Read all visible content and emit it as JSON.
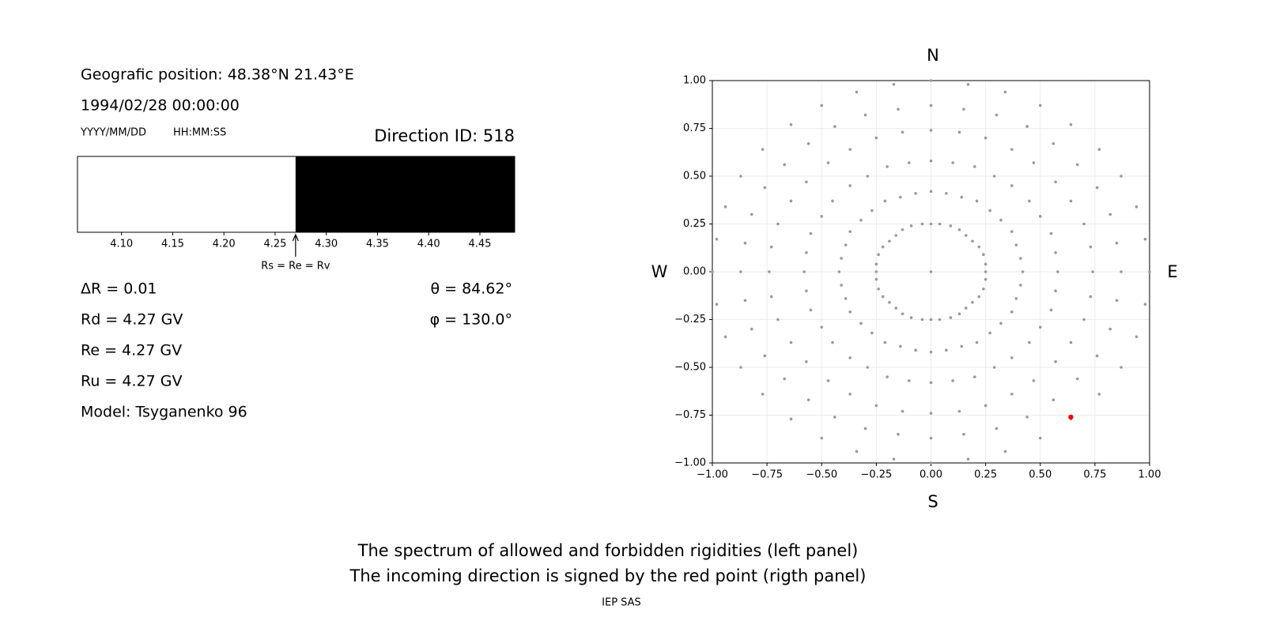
{
  "info": {
    "position": "Geografic position: 48.38°N 21.43°E",
    "datetime": "1994/02/28 00:00:00",
    "date_format": "YYYY/MM/DD",
    "time_format": "HH:MM:SS",
    "direction_id": "Direction ID: 518",
    "delta_r": "ΔR = 0.01",
    "rd": "Rd = 4.27 GV",
    "re": "Re = 4.27 GV",
    "ru": "Ru = 4.27 GV",
    "model": "Model: Tsyganenko 96",
    "theta": "θ = 84.62°",
    "phi": "φ = 130.0°"
  },
  "chart_data": [
    {
      "type": "spectrum",
      "bins": [
        4.057,
        4.27,
        4.484
      ],
      "colors": [
        "#ffffff",
        "#000000"
      ],
      "xlim": [
        4.057,
        4.484
      ],
      "xticks": [
        {
          "value": 4.1,
          "label": "4.10"
        },
        4.15,
        {
          "value": 4.2,
          "label": "4.20"
        },
        4.25,
        {
          "value": 4.3,
          "label": "4.30"
        },
        4.35,
        {
          "value": 4.4,
          "label": "4.40"
        },
        4.45
      ],
      "annotation": {
        "text": "Rs = Re = Rv",
        "x": 4.27
      }
    },
    {
      "type": "scatter",
      "direction_labels": [
        "N",
        "S",
        "W",
        "E"
      ],
      "xlim": [
        -1,
        1
      ],
      "ylim": [
        -1,
        1
      ],
      "xticks": [
        {
          "value": -1,
          "label": "−1.00"
        },
        {
          "value": -0.75,
          "label": "−0.75"
        },
        {
          "value": -0.5,
          "label": "−0.50"
        },
        {
          "value": -0.25,
          "label": "−0.25"
        },
        {
          "value": 0,
          "label": "0.00"
        },
        {
          "value": 0.25,
          "label": "0.25"
        },
        {
          "value": 0.5,
          "label": "0.50"
        },
        {
          "value": 0.75,
          "label": "0.75"
        },
        {
          "value": 1,
          "label": "1.00"
        }
      ],
      "yticks": [
        {
          "value": -1,
          "label": "−1.00"
        },
        {
          "value": -0.75,
          "label": "−0.75"
        },
        {
          "value": -0.5,
          "label": "−0.50"
        },
        {
          "value": -0.25,
          "label": "−0.25"
        },
        {
          "value": 0,
          "label": "0.00"
        },
        {
          "value": 0.25,
          "label": "0.25"
        },
        {
          "value": 0.5,
          "label": "0.50"
        },
        {
          "value": 0.75,
          "label": "0.75"
        },
        {
          "value": 1,
          "label": "1.00"
        }
      ],
      "grid": true,
      "series": [
        {
          "color": "#999999",
          "x": [
            0,
            0.04,
            0.09,
            0.13,
            0.16,
            0.19,
            0.22,
            0.24,
            0.25,
            0.25,
            0.25,
            0.24,
            0.22,
            0.19,
            0.16,
            0.13,
            0.09,
            0.04,
            0,
            -0.04,
            -0.09,
            -0.13,
            -0.16,
            -0.19,
            -0.22,
            -0.24,
            -0.25,
            -0.25,
            -0.25,
            -0.24,
            -0.22,
            -0.19,
            -0.16,
            -0.13,
            -0.09,
            -0.04,
            0,
            0.07,
            0.14,
            0.21,
            0.27,
            0.32,
            0.37,
            0.39,
            0.41,
            0.42,
            0.41,
            0.39,
            0.37,
            0.32,
            0.27,
            0.21,
            0.14,
            0.07,
            0,
            -0.07,
            -0.14,
            -0.21,
            -0.27,
            -0.32,
            -0.37,
            -0.39,
            -0.41,
            -0.42,
            -0.41,
            -0.39,
            -0.37,
            -0.32,
            -0.27,
            -0.21,
            -0.14,
            -0.07,
            0,
            0.1,
            0.2,
            0.29,
            0.37,
            0.45,
            0.5,
            0.55,
            0.57,
            0.58,
            0.57,
            0.55,
            0.5,
            0.45,
            0.37,
            0.29,
            0.2,
            0.1,
            0,
            -0.1,
            -0.2,
            -0.29,
            -0.37,
            -0.45,
            -0.5,
            -0.55,
            -0.57,
            -0.58,
            -0.57,
            -0.55,
            -0.5,
            -0.45,
            -0.37,
            -0.29,
            -0.2,
            -0.1,
            0,
            0.13,
            0.25,
            0.37,
            0.47,
            0.57,
            0.64,
            0.7,
            0.73,
            0.74,
            0.73,
            0.7,
            0.64,
            0.57,
            0.47,
            0.37,
            0.25,
            0.13,
            0,
            -0.13,
            -0.25,
            -0.37,
            -0.47,
            -0.57,
            -0.64,
            -0.7,
            -0.73,
            -0.74,
            -0.73,
            -0.7,
            -0.64,
            -0.57,
            -0.47,
            -0.37,
            -0.25,
            -0.13,
            0,
            0.15,
            0.3,
            0.44,
            0.56,
            0.67,
            0.76,
            0.82,
            0.85,
            0.87,
            0.85,
            0.82,
            0.76,
            0.67,
            0.56,
            0.44,
            0.3,
            0.15,
            0,
            -0.15,
            -0.3,
            -0.44,
            -0.56,
            -0.67,
            -0.76,
            -0.82,
            -0.85,
            -0.87,
            -0.85,
            -0.82,
            -0.76,
            -0.67,
            -0.56,
            -0.44,
            -0.3,
            -0.15,
            0,
            0.17,
            0.34,
            0.5,
            0.64,
            0.77,
            0.87,
            0.94,
            0.98,
            1,
            0.98,
            0.94,
            0.87,
            0.77,
            0.64,
            0.5,
            0.34,
            0.17,
            0,
            -0.17,
            -0.34,
            -0.5,
            -0.64,
            -0.77,
            -0.87,
            -0.94,
            -0.98,
            -1,
            -0.98,
            -0.94,
            -0.87,
            -0.77,
            -0.64,
            -0.5,
            -0.34,
            -0.17,
            0
          ],
          "values": [
            0.25,
            0.25,
            0.24,
            0.22,
            0.19,
            0.16,
            0.13,
            0.09,
            0.04,
            0,
            -0.04,
            -0.09,
            -0.13,
            -0.16,
            -0.19,
            -0.22,
            -0.24,
            -0.25,
            -0.25,
            -0.25,
            -0.24,
            -0.22,
            -0.19,
            -0.16,
            -0.13,
            -0.09,
            -0.04,
            0,
            0.04,
            0.09,
            0.13,
            0.16,
            0.19,
            0.22,
            0.24,
            0.25,
            0.42,
            0.41,
            0.39,
            0.37,
            0.32,
            0.27,
            0.21,
            0.14,
            0.07,
            0,
            -0.07,
            -0.14,
            -0.21,
            -0.27,
            -0.32,
            -0.37,
            -0.39,
            -0.41,
            -0.42,
            -0.41,
            -0.39,
            -0.37,
            -0.32,
            -0.27,
            -0.21,
            -0.14,
            -0.07,
            0,
            0.07,
            0.14,
            0.21,
            0.27,
            0.32,
            0.37,
            0.39,
            0.41,
            0.58,
            0.57,
            0.55,
            0.5,
            0.45,
            0.37,
            0.29,
            0.2,
            0.1,
            0,
            -0.1,
            -0.2,
            -0.29,
            -0.37,
            -0.45,
            -0.5,
            -0.55,
            -0.57,
            -0.58,
            -0.57,
            -0.55,
            -0.5,
            -0.45,
            -0.37,
            -0.29,
            -0.2,
            -0.1,
            0,
            0.1,
            0.2,
            0.29,
            0.37,
            0.45,
            0.5,
            0.55,
            0.57,
            0.74,
            0.73,
            0.7,
            0.64,
            0.57,
            0.47,
            0.37,
            0.25,
            0.13,
            0,
            -0.13,
            -0.25,
            -0.37,
            -0.47,
            -0.57,
            -0.64,
            -0.7,
            -0.73,
            -0.74,
            -0.73,
            -0.7,
            -0.64,
            -0.57,
            -0.47,
            -0.37,
            -0.25,
            -0.13,
            0,
            0.13,
            0.25,
            0.37,
            0.47,
            0.57,
            0.64,
            0.7,
            0.73,
            0.87,
            0.85,
            0.82,
            0.76,
            0.67,
            0.56,
            0.44,
            0.3,
            0.15,
            0,
            -0.15,
            -0.3,
            -0.44,
            -0.56,
            -0.67,
            -0.76,
            -0.82,
            -0.85,
            -0.87,
            -0.85,
            -0.82,
            -0.76,
            -0.67,
            -0.56,
            -0.44,
            -0.3,
            -0.15,
            0,
            0.15,
            0.3,
            0.44,
            0.56,
            0.67,
            0.76,
            0.82,
            0.85,
            1,
            0.98,
            0.94,
            0.87,
            0.77,
            0.64,
            0.5,
            0.34,
            0.17,
            0,
            -0.17,
            -0.34,
            -0.5,
            -0.64,
            -0.77,
            -0.87,
            -0.94,
            -0.98,
            -1,
            -0.98,
            -0.94,
            -0.87,
            -0.77,
            -0.64,
            -0.5,
            -0.34,
            -0.17,
            0,
            0.17,
            0.34,
            0.5,
            0.64,
            0.77,
            0.87,
            0.94,
            0.98,
            0
          ]
        },
        {
          "color": "#ff0000",
          "x": [
            0.64
          ],
          "values": [
            -0.76
          ]
        }
      ]
    }
  ],
  "caption": [
    "The spectrum of allowed and forbidden rigidities (left panel)",
    "The incoming direction is signed by the red point (rigth panel)"
  ],
  "credit": "IEP SAS"
}
